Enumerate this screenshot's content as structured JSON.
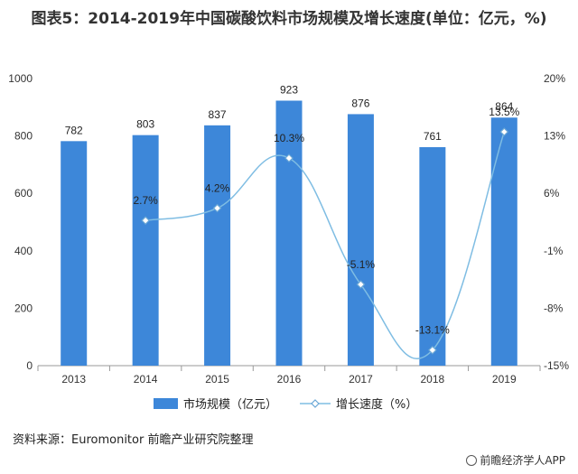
{
  "title": "图表5：2014-2019年中国碳酸饮料市场规模及增长速度(单位：亿元，%)",
  "source": "资料来源：Euromonitor 前瞻产业研究院整理",
  "credit": "前瞻经济学人APP",
  "colors": {
    "bar": "#3d87d9",
    "line": "#7fbde3",
    "marker_fill": "#ffffff",
    "marker_stroke": "#6aa7d6",
    "axis": "#999999"
  },
  "chart_data": {
    "type": "bar",
    "categories": [
      "2013",
      "2014",
      "2015",
      "2016",
      "2017",
      "2018",
      "2019"
    ],
    "series": [
      {
        "name": "市场规模（亿元）",
        "type": "bar",
        "axis": "left",
        "values": [
          782,
          803,
          837,
          923,
          876,
          761,
          864
        ],
        "labels": [
          "782",
          "803",
          "837",
          "923",
          "876",
          "761",
          "864"
        ]
      },
      {
        "name": "增长速度（%）",
        "type": "line",
        "axis": "right",
        "values": [
          null,
          2.7,
          4.2,
          10.3,
          -5.1,
          -13.1,
          13.5
        ],
        "labels": [
          "",
          "2.7%",
          "4.2%",
          "10.3%",
          "-5.1%",
          "-13.1%",
          "13.5%"
        ]
      }
    ],
    "y_left": {
      "ylim": [
        0,
        1000
      ],
      "ticks": [
        "0",
        "200",
        "400",
        "600",
        "800",
        "1000"
      ],
      "tick_values": [
        0,
        200,
        400,
        600,
        800,
        1000
      ]
    },
    "y_right": {
      "ylim": [
        -15,
        20
      ],
      "ticks": [
        "-15%",
        "-8%",
        "-1%",
        "6%",
        "13%",
        "20%"
      ],
      "tick_values": [
        -15,
        -8,
        -1,
        6,
        13,
        20
      ]
    },
    "legend_position": "bottom",
    "grid": false
  }
}
